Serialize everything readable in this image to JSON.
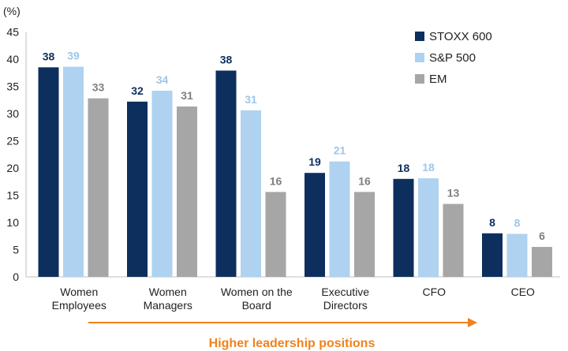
{
  "chart_data": {
    "type": "bar",
    "unit_label": "(%)",
    "categories": [
      [
        "Women",
        "Employees"
      ],
      [
        "Women",
        "Managers"
      ],
      [
        "Women on the",
        "Board"
      ],
      [
        "Executive",
        "Directors"
      ],
      [
        "CFO"
      ],
      [
        "CEO"
      ]
    ],
    "series": [
      {
        "name": "STOXX 600",
        "color": "#0d2f5e",
        "label_color": "#0d2f5e",
        "values": [
          38,
          32,
          38,
          19,
          18,
          8
        ]
      },
      {
        "name": "S&P 500",
        "color": "#aed2f0",
        "label_color": "#9cc7ea",
        "values": [
          39,
          34,
          31,
          21,
          18,
          8
        ]
      },
      {
        "name": "EM",
        "color": "#a6a6a6",
        "label_color": "#7f7f7f",
        "values": [
          33,
          31,
          16,
          16,
          13,
          6
        ]
      }
    ],
    "bar_heights_exact": [
      [
        38.5,
        32.2,
        37.9,
        19.1,
        18.0,
        8.0
      ],
      [
        38.6,
        34.2,
        30.6,
        21.2,
        18.1,
        7.9
      ],
      [
        32.8,
        31.3,
        15.6,
        15.6,
        13.4,
        5.5
      ]
    ],
    "yticks": [
      0,
      5,
      10,
      15,
      20,
      25,
      30,
      35,
      40,
      45
    ],
    "ylim": [
      0,
      45
    ],
    "legend_position": "top-right",
    "annotation": {
      "text": "Higher leadership positions",
      "color": "#f0821e"
    }
  }
}
